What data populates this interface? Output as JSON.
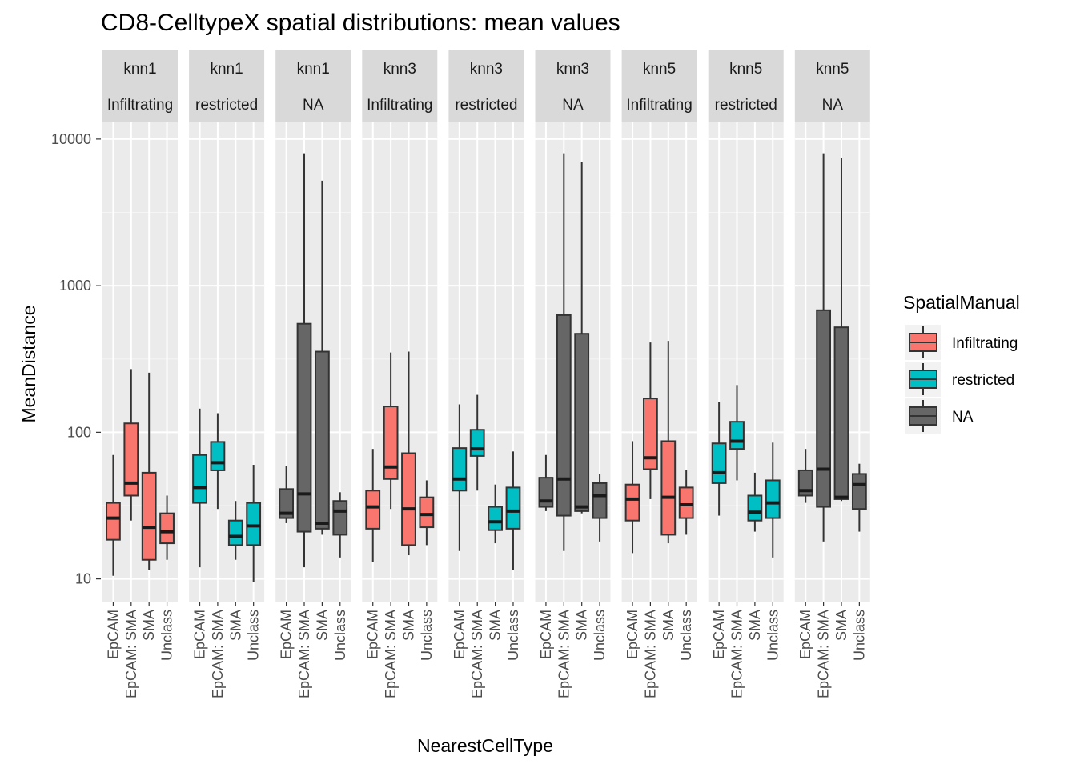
{
  "chart_data": {
    "type": "boxplot",
    "title": "CD8-CelltypeX spatial distributions: mean values",
    "xlabel": "NearestCellType",
    "ylabel": "MeanDistance",
    "y_scale": "log10",
    "ylim": [
      7,
      13000
    ],
    "y_ticks": [
      10,
      100,
      1000,
      10000
    ],
    "y_tick_labels": [
      "10",
      "100",
      "1000",
      "10000"
    ],
    "categories": [
      "EpCAM",
      "EpCAM: SMA",
      "SMA",
      "Unclass"
    ],
    "legend": {
      "title": "SpatialManual",
      "placement": "right",
      "entries": [
        {
          "label": "Infiltrating",
          "color": "#F8766D"
        },
        {
          "label": "restricted",
          "color": "#00BFC4"
        },
        {
          "label": "NA",
          "color": "#666666"
        }
      ]
    },
    "grid": true,
    "panels": [
      {
        "strip": [
          "knn1",
          "Infiltrating"
        ],
        "group": "Infiltrating",
        "boxes": [
          {
            "category": "EpCAM",
            "min": 10.5,
            "q1": 18.5,
            "median": 26,
            "q3": 33,
            "max": 70
          },
          {
            "category": "EpCAM: SMA",
            "min": 25,
            "q1": 37,
            "median": 45,
            "q3": 115,
            "max": 270
          },
          {
            "category": "SMA",
            "min": 11.5,
            "q1": 13.5,
            "median": 22.5,
            "q3": 53,
            "max": 255
          },
          {
            "category": "Unclass",
            "min": 13.5,
            "q1": 17.5,
            "median": 21,
            "q3": 28,
            "max": 37
          }
        ]
      },
      {
        "strip": [
          "knn1",
          "restricted"
        ],
        "group": "restricted",
        "boxes": [
          {
            "category": "EpCAM",
            "min": 12,
            "q1": 33,
            "median": 42,
            "q3": 70,
            "max": 145
          },
          {
            "category": "EpCAM: SMA",
            "min": 30,
            "q1": 55,
            "median": 62,
            "q3": 86,
            "max": 135
          },
          {
            "category": "SMA",
            "min": 13.5,
            "q1": 17,
            "median": 19.5,
            "q3": 25,
            "max": 34
          },
          {
            "category": "Unclass",
            "min": 9.5,
            "q1": 17,
            "median": 23,
            "q3": 33,
            "max": 60
          }
        ]
      },
      {
        "strip": [
          "knn1",
          "NA"
        ],
        "group": "NA",
        "boxes": [
          {
            "category": "EpCAM",
            "min": 24,
            "q1": 26,
            "median": 28,
            "q3": 41,
            "max": 59
          },
          {
            "category": "EpCAM: SMA",
            "min": 12,
            "q1": 21,
            "median": 38,
            "q3": 550,
            "max": 8000
          },
          {
            "category": "SMA",
            "min": 20,
            "q1": 22,
            "median": 24,
            "q3": 355,
            "max": 5200
          },
          {
            "category": "Unclass",
            "min": 14,
            "q1": 20,
            "median": 29,
            "q3": 34,
            "max": 39
          }
        ]
      },
      {
        "strip": [
          "knn3",
          "Infiltrating"
        ],
        "group": "Infiltrating",
        "boxes": [
          {
            "category": "EpCAM",
            "min": 13,
            "q1": 22,
            "median": 31,
            "q3": 40,
            "max": 77
          },
          {
            "category": "EpCAM: SMA",
            "min": 30,
            "q1": 48,
            "median": 58,
            "q3": 150,
            "max": 350
          },
          {
            "category": "SMA",
            "min": 14.5,
            "q1": 17,
            "median": 30,
            "q3": 72,
            "max": 355
          },
          {
            "category": "Unclass",
            "min": 17,
            "q1": 22.5,
            "median": 27.5,
            "q3": 36,
            "max": 47
          }
        ]
      },
      {
        "strip": [
          "knn3",
          "restricted"
        ],
        "group": "restricted",
        "boxes": [
          {
            "category": "EpCAM",
            "min": 15.5,
            "q1": 40,
            "median": 48,
            "q3": 78,
            "max": 155
          },
          {
            "category": "EpCAM: SMA",
            "min": 40,
            "q1": 69,
            "median": 77,
            "q3": 104,
            "max": 180
          },
          {
            "category": "SMA",
            "min": 17.5,
            "q1": 21.5,
            "median": 24.5,
            "q3": 31,
            "max": 44
          },
          {
            "category": "Unclass",
            "min": 11.5,
            "q1": 22,
            "median": 29,
            "q3": 42,
            "max": 74
          }
        ]
      },
      {
        "strip": [
          "knn3",
          "NA"
        ],
        "group": "NA",
        "boxes": [
          {
            "category": "EpCAM",
            "min": 29,
            "q1": 31,
            "median": 34,
            "q3": 49,
            "max": 70
          },
          {
            "category": "EpCAM: SMA",
            "min": 15.5,
            "q1": 27,
            "median": 48,
            "q3": 630,
            "max": 8000
          },
          {
            "category": "SMA",
            "min": 28,
            "q1": 29,
            "median": 31,
            "q3": 470,
            "max": 7000
          },
          {
            "category": "Unclass",
            "min": 18,
            "q1": 26,
            "median": 37,
            "q3": 45,
            "max": 52
          }
        ]
      },
      {
        "strip": [
          "knn5",
          "Infiltrating"
        ],
        "group": "Infiltrating",
        "boxes": [
          {
            "category": "EpCAM",
            "min": 15,
            "q1": 25,
            "median": 35,
            "q3": 44,
            "max": 87
          },
          {
            "category": "EpCAM: SMA",
            "min": 35,
            "q1": 56,
            "median": 67,
            "q3": 170,
            "max": 410
          },
          {
            "category": "SMA",
            "min": 17.5,
            "q1": 20,
            "median": 36,
            "q3": 87,
            "max": 420
          },
          {
            "category": "Unclass",
            "min": 20,
            "q1": 26,
            "median": 32,
            "q3": 42,
            "max": 55
          }
        ]
      },
      {
        "strip": [
          "knn5",
          "restricted"
        ],
        "group": "restricted",
        "boxes": [
          {
            "category": "EpCAM",
            "min": 27,
            "q1": 45,
            "median": 53,
            "q3": 84,
            "max": 160
          },
          {
            "category": "EpCAM: SMA",
            "min": 47,
            "q1": 77,
            "median": 87,
            "q3": 118,
            "max": 210
          },
          {
            "category": "SMA",
            "min": 21,
            "q1": 25,
            "median": 28.5,
            "q3": 37,
            "max": 53
          },
          {
            "category": "Unclass",
            "min": 14,
            "q1": 26,
            "median": 33,
            "q3": 47,
            "max": 85
          }
        ]
      },
      {
        "strip": [
          "knn5",
          "NA"
        ],
        "group": "NA",
        "boxes": [
          {
            "category": "EpCAM",
            "min": 33,
            "q1": 37,
            "median": 40,
            "q3": 55,
            "max": 77
          },
          {
            "category": "EpCAM: SMA",
            "min": 18,
            "q1": 31,
            "median": 56,
            "q3": 680,
            "max": 8000
          },
          {
            "category": "SMA",
            "min": 34,
            "q1": 35,
            "median": 36,
            "q3": 520,
            "max": 7400
          },
          {
            "category": "Unclass",
            "min": 21,
            "q1": 30,
            "median": 44,
            "q3": 52,
            "max": 61
          }
        ]
      }
    ]
  }
}
